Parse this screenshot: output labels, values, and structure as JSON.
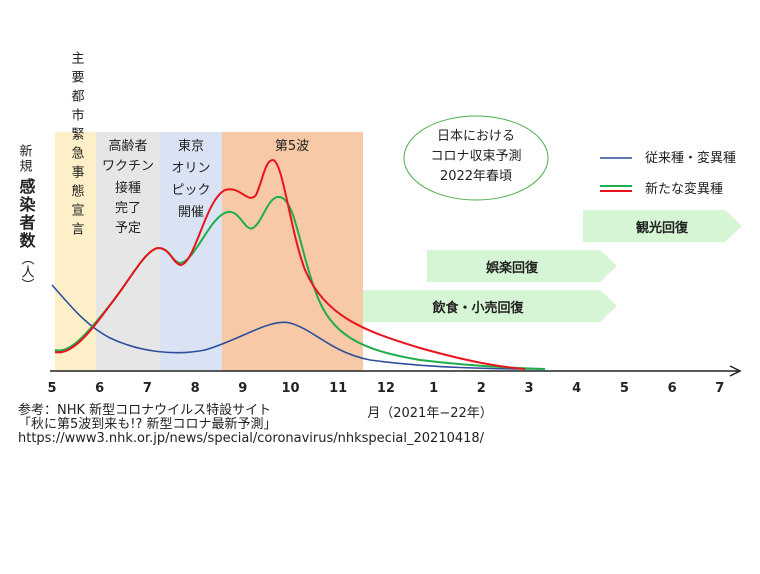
{
  "y_label": {
    "line1": "新規",
    "line2": "感染者数",
    "unit": "（人）"
  },
  "bands": {
    "emergency": "主要都市緊急事態宣言",
    "vaccine": [
      "高齢者",
      "ワクチン",
      "接種",
      "完了",
      "予定"
    ],
    "olympics": [
      "東京",
      "オリン",
      "ピック",
      "開催"
    ],
    "wave5": "第5波"
  },
  "forecast": [
    "日本における",
    "コロナ収束予測",
    "2022年春頃"
  ],
  "legend": [
    "従来種・変異種",
    "新たな変異種"
  ],
  "recovery": [
    "観光回復",
    "娯楽回復",
    "飲食・小売回復"
  ],
  "x_ticks": [
    "5",
    "6",
    "7",
    "8",
    "9",
    "10",
    "11",
    "12",
    "1",
    "2",
    "3",
    "4",
    "5",
    "6",
    "7"
  ],
  "x_label": "月（2021年−22年）",
  "source": [
    "参考：NHK 新型コロナウイルス特設サイト",
    "「秋に第5波到来も!? 新型コロナ最新予測」",
    "https://www3.nhk.or.jp/news/special/coronavirus/nhkspecial_20210418/"
  ]
}
